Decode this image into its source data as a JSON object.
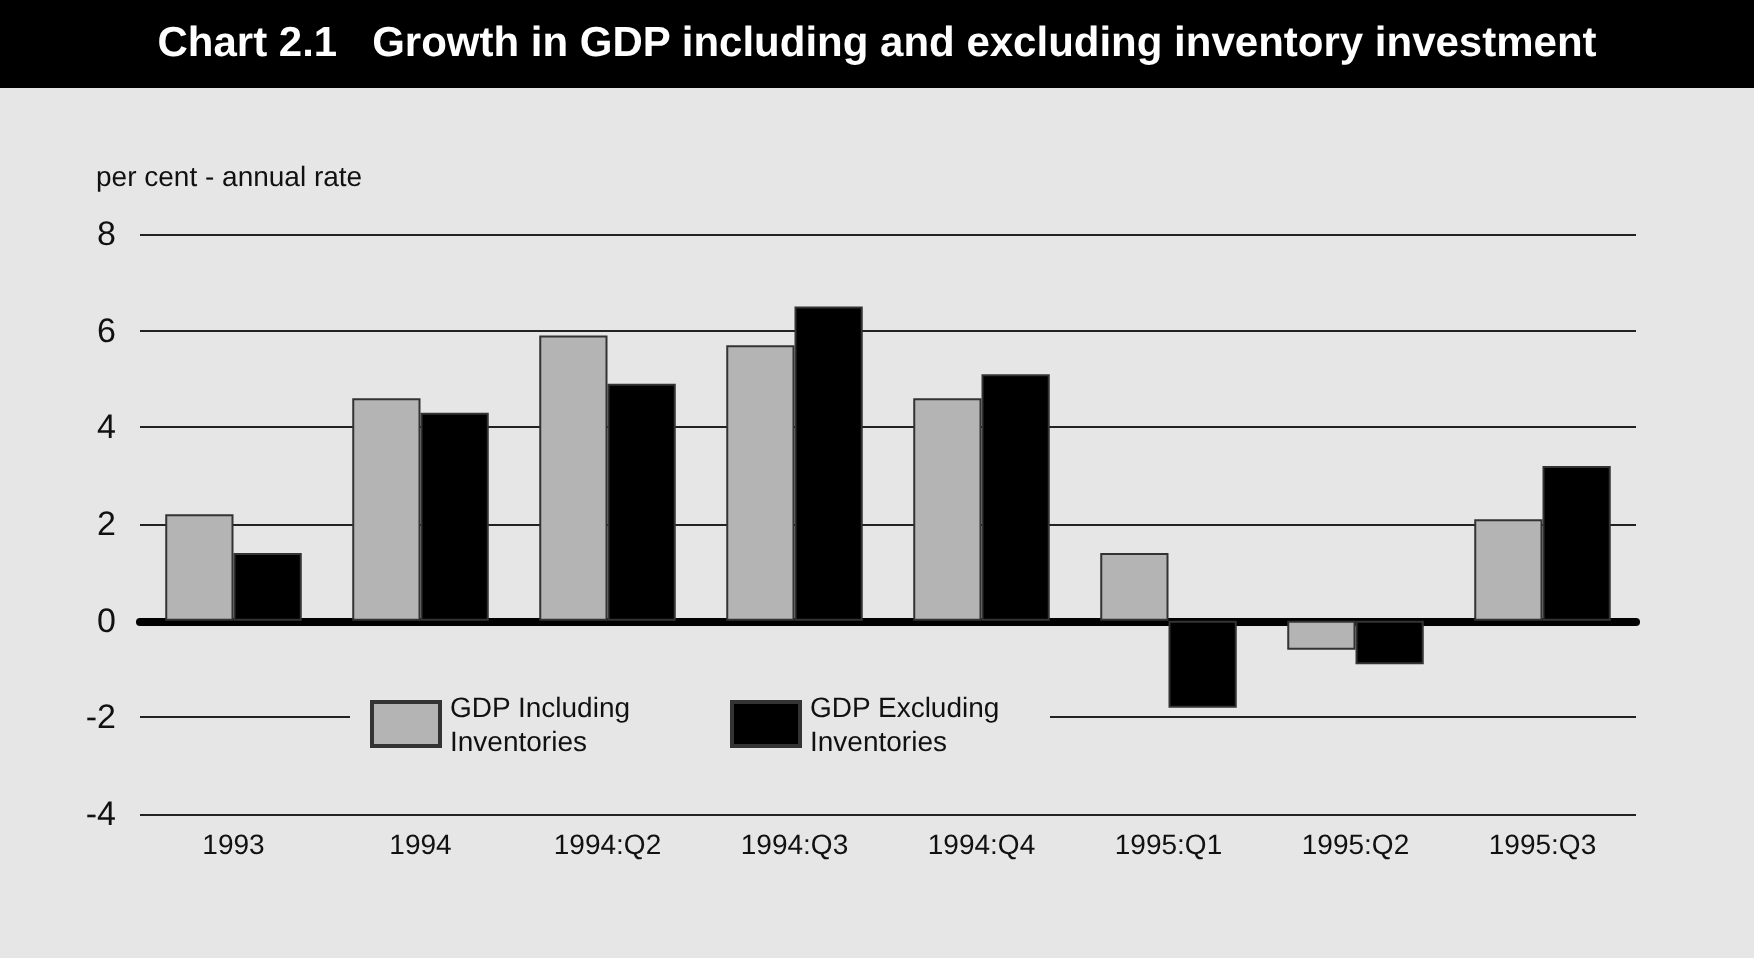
{
  "chart_data": {
    "type": "bar",
    "title": "Chart 2.1   Growth in GDP including and excluding inventory investment",
    "ylabel": "per cent - annual rate",
    "categories": [
      "1993",
      "1994",
      "1994:Q2",
      "1994:Q3",
      "1994:Q4",
      "1995:Q1",
      "1995:Q2",
      "1995:Q3"
    ],
    "series": [
      {
        "name": "GDP Including Inventories",
        "color": "#b4b4b4",
        "values": [
          2.2,
          4.6,
          5.9,
          5.7,
          4.6,
          1.4,
          -0.6,
          2.1
        ]
      },
      {
        "name": "GDP Excluding Inventories",
        "color": "#000000",
        "values": [
          1.4,
          4.3,
          4.9,
          6.5,
          5.1,
          -1.8,
          -0.9,
          3.2
        ]
      }
    ],
    "ylim": [
      -4,
      8
    ],
    "yticks": [
      -4,
      -2,
      0,
      2,
      4,
      6,
      8
    ],
    "grid": "y",
    "legend": "bottom"
  }
}
